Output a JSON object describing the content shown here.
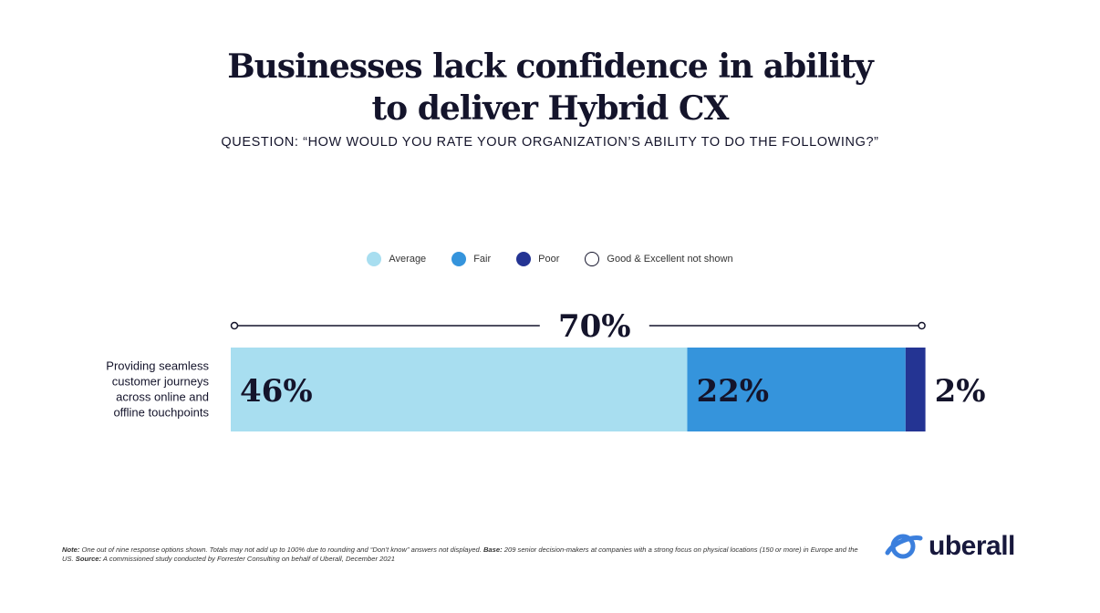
{
  "title_line1": "Businesses lack confidence in ability",
  "title_line2": "to deliver Hybrid CX",
  "subtitle": "QUESTION: “HOW WOULD YOU RATE YOUR ORGANIZATION’S ABILITY TO DO THE FOLLOWING?”",
  "legend": [
    {
      "label": "Average",
      "color": "#a8def0"
    },
    {
      "label": "Fair",
      "color": "#3594dc"
    },
    {
      "label": "Poor",
      "color": "#243493"
    },
    {
      "label": "Good & Excellent not shown",
      "color": "#ffffff"
    }
  ],
  "chart_data": {
    "type": "bar",
    "orientation": "horizontal",
    "stacked": true,
    "categories": [
      "Providing seamless customer journeys across online and offline touchpoints"
    ],
    "category_lines": [
      "Providing seamless",
      "customer journeys",
      "across online and",
      "offline touchpoints"
    ],
    "series": [
      {
        "name": "Average",
        "values": [
          46
        ],
        "label": "46%",
        "color": "#a8def0"
      },
      {
        "name": "Fair",
        "values": [
          22
        ],
        "label": "22%",
        "color": "#3594dc"
      },
      {
        "name": "Poor",
        "values": [
          2
        ],
        "label": "2%",
        "color": "#243493"
      }
    ],
    "total_label": "70%",
    "total": 70
  },
  "note": {
    "note_label": "Note:",
    "note_text": " One out of nine response options shown. Totals may not add up to 100% due to rounding and “Don’t know” answers not displayed. ",
    "base_label": "Base:",
    "base_text": " 209 senior decision-makers at companies with a strong focus on physical locations (150 or more) in Europe and the US. ",
    "source_label": "Source:",
    "source_text": " A commissioned study conducted by Forrester Consulting on behalf of Uberall, December 2021"
  },
  "logo_text": "uberall"
}
